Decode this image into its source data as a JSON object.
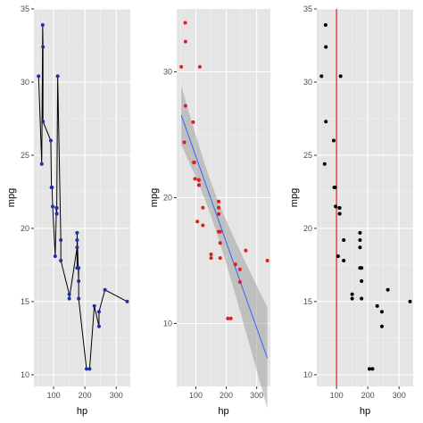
{
  "chart_data": [
    {
      "type": "line",
      "xlabel": "hp",
      "ylabel": "mpg",
      "xlim": [
        37,
        345
      ],
      "ylim": [
        9.2,
        35
      ],
      "x_ticks": [
        100,
        200,
        300
      ],
      "y_ticks": [
        10,
        15,
        20,
        25,
        30,
        35
      ],
      "grid": true,
      "colors": {
        "line": "#000000",
        "point": "#1f2fa8"
      },
      "series": [
        {
          "x": [
            52,
            62,
            65,
            66,
            66,
            91,
            93,
            95,
            97,
            105,
            109,
            110,
            110,
            110,
            113,
            123,
            123,
            150,
            150,
            175,
            175,
            175,
            175,
            180,
            180,
            180,
            205,
            215,
            230,
            245,
            245,
            264,
            335
          ],
          "y": [
            30.4,
            24.4,
            33.9,
            32.4,
            27.3,
            26.0,
            22.8,
            22.8,
            21.5,
            18.1,
            21.4,
            21.0,
            21.0,
            21.4,
            30.4,
            19.2,
            17.8,
            15.5,
            15.2,
            18.7,
            19.2,
            17.3,
            19.7,
            16.4,
            17.3,
            15.2,
            10.4,
            10.4,
            14.7,
            13.3,
            14.3,
            15.8,
            15.0
          ]
        }
      ]
    },
    {
      "type": "scatter",
      "xlabel": "hp",
      "ylabel": "mpg",
      "xlim": [
        37,
        345
      ],
      "ylim": [
        5.0,
        35
      ],
      "x_ticks": [
        100,
        200,
        300
      ],
      "y_ticks": [
        10,
        20,
        30
      ],
      "grid": true,
      "colors": {
        "point": "#e41a1c",
        "fit": "#3366ff",
        "band": "#999999"
      },
      "smooth": {
        "method": "linear",
        "intercept": 30.1,
        "slope": -0.0682
      },
      "series": [
        {
          "x": [
            52,
            62,
            65,
            66,
            66,
            91,
            93,
            95,
            97,
            105,
            109,
            110,
            110,
            110,
            113,
            123,
            123,
            150,
            150,
            175,
            175,
            175,
            175,
            180,
            180,
            180,
            205,
            215,
            230,
            245,
            245,
            264,
            335
          ],
          "y": [
            30.4,
            24.4,
            33.9,
            32.4,
            27.3,
            26.0,
            22.8,
            22.8,
            21.5,
            18.1,
            21.4,
            21.0,
            21.0,
            21.4,
            30.4,
            19.2,
            17.8,
            15.5,
            15.2,
            18.7,
            19.2,
            17.3,
            19.7,
            16.4,
            17.3,
            15.2,
            10.4,
            10.4,
            14.7,
            13.3,
            14.3,
            15.8,
            15.0
          ]
        }
      ]
    },
    {
      "type": "scatter",
      "xlabel": "hp",
      "ylabel": "mpg",
      "xlim": [
        37,
        345
      ],
      "ylim": [
        9.2,
        35
      ],
      "x_ticks": [
        100,
        200,
        300
      ],
      "y_ticks": [
        10,
        15,
        20,
        25,
        30,
        35
      ],
      "grid": true,
      "colors": {
        "point": "#000000",
        "vline": "#e41a1c"
      },
      "vline": 100,
      "series": [
        {
          "x": [
            52,
            62,
            65,
            66,
            66,
            91,
            93,
            95,
            97,
            105,
            109,
            110,
            110,
            110,
            113,
            123,
            123,
            150,
            150,
            175,
            175,
            175,
            175,
            180,
            180,
            180,
            205,
            215,
            230,
            245,
            245,
            264,
            335
          ],
          "y": [
            30.4,
            24.4,
            33.9,
            32.4,
            27.3,
            26.0,
            22.8,
            22.8,
            21.5,
            18.1,
            21.4,
            21.0,
            21.0,
            21.4,
            30.4,
            19.2,
            17.8,
            15.5,
            15.2,
            18.7,
            19.2,
            17.3,
            19.7,
            16.4,
            17.3,
            15.2,
            10.4,
            10.4,
            14.7,
            13.3,
            14.3,
            15.8,
            15.0
          ]
        }
      ]
    }
  ]
}
